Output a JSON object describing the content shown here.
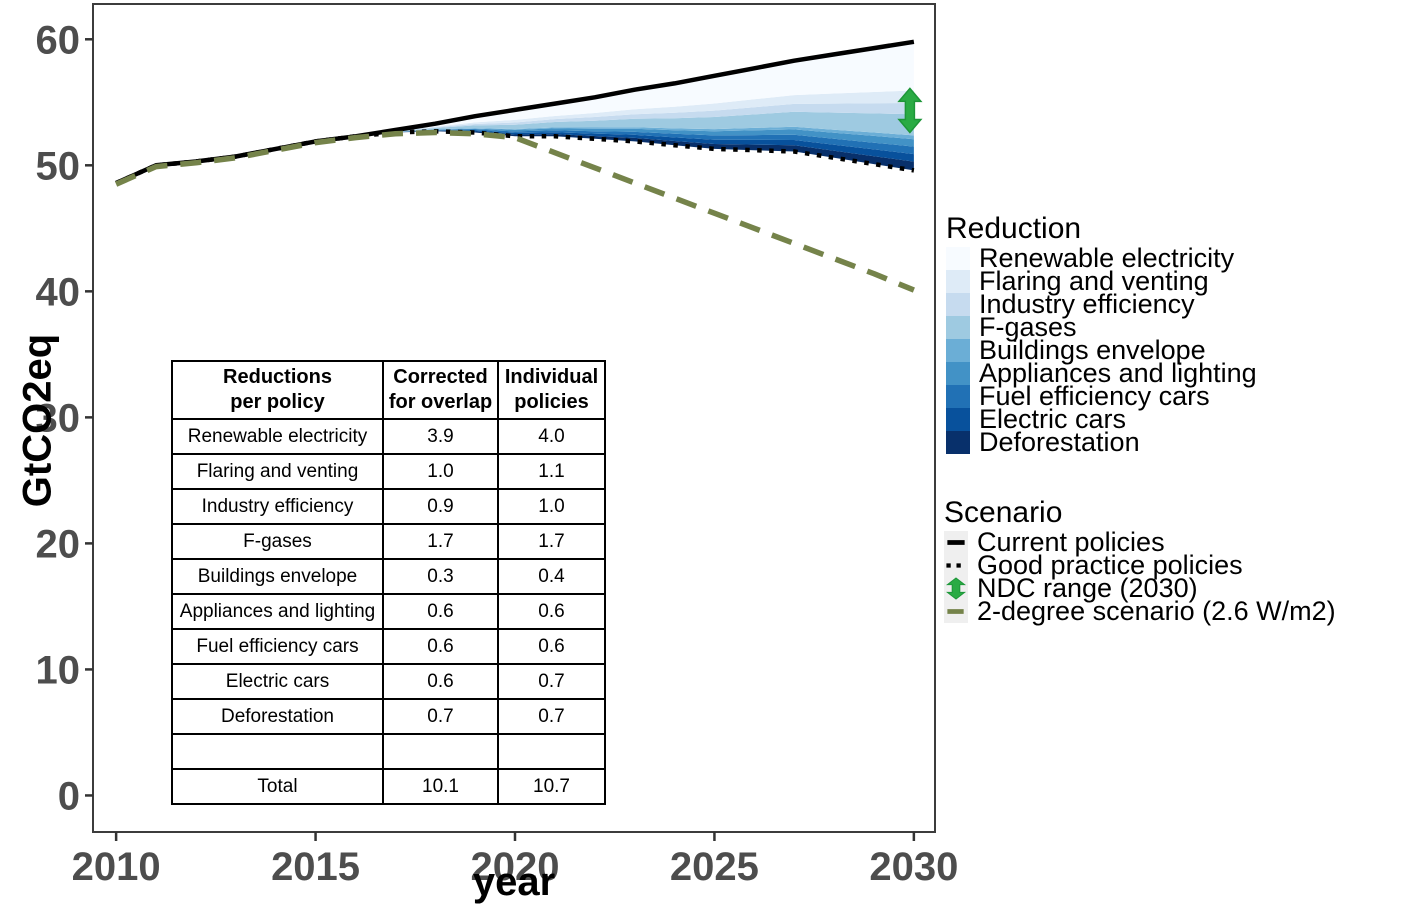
{
  "figure": {
    "background": "#ffffff"
  },
  "chart_data": {
    "type": "area",
    "title": "",
    "xlabel": "year",
    "ylabel": "GtCO2eq",
    "xlim": [
      2009.42,
      2030.53
    ],
    "ylim": [
      -2.9,
      62.8
    ],
    "xticks": [
      2010,
      2015,
      2020,
      2025,
      2030
    ],
    "yticks": [
      0,
      10,
      20,
      30,
      40,
      50,
      60
    ],
    "grid": "off",
    "legend_position": "right",
    "panel_border_color": "#3c3c3c",
    "tick_label_color": "#4d4d4d",
    "years": [
      2010,
      2011,
      2012,
      2013,
      2014,
      2015,
      2016,
      2017,
      2018,
      2019,
      2020,
      2021,
      2022,
      2023,
      2024,
      2025,
      2026,
      2027,
      2028,
      2029,
      2030
    ],
    "series": [
      {
        "name": "Current policies",
        "style": "solid",
        "color": "#000000",
        "values": [
          48.6,
          50.0,
          50.3,
          50.7,
          51.3,
          51.9,
          52.3,
          52.8,
          53.3,
          53.9,
          54.4,
          54.9,
          55.4,
          56.0,
          56.5,
          57.1,
          57.7,
          58.3,
          58.8,
          59.3,
          59.8
        ]
      },
      {
        "name": "Good practice policies",
        "style": "dotted",
        "color": "#000000",
        "values": [
          48.6,
          50.0,
          50.3,
          50.7,
          51.3,
          51.9,
          52.3,
          52.6,
          52.7,
          52.6,
          52.3,
          52.3,
          52.1,
          51.9,
          51.6,
          51.3,
          51.2,
          51.1,
          50.6,
          50.1,
          49.6
        ]
      },
      {
        "name": "2-degree scenario (2.6 W/m2)",
        "style": "dashed",
        "color": "#75834a",
        "values": [
          48.5,
          49.9,
          50.2,
          50.6,
          51.2,
          51.8,
          52.2,
          52.5,
          52.6,
          52.5,
          52.2,
          51.0,
          49.8,
          48.6,
          47.4,
          46.2,
          45.0,
          43.8,
          42.6,
          41.4,
          40.1
        ]
      }
    ],
    "reduction_bands": {
      "stacked_between": [
        "Good practice policies",
        "Current policies"
      ],
      "order_top_to_bottom": [
        "Renewable electricity",
        "Flaring and venting",
        "Industry efficiency",
        "F-gases",
        "Buildings envelope",
        "Appliances and lighting",
        "Fuel efficiency cars",
        "Electric cars",
        "Deforestation"
      ],
      "colors_top_to_bottom": [
        "#f7fbff",
        "#deebf7",
        "#c6dbef",
        "#9ecae1",
        "#6baed6",
        "#4292c6",
        "#2171b5",
        "#08519c",
        "#08306b"
      ],
      "widths_2030_GtCO2eq": [
        3.9,
        1.0,
        0.9,
        1.7,
        0.3,
        0.6,
        0.6,
        0.6,
        0.7
      ]
    },
    "ndc_range": {
      "label": "NDC range (2030)",
      "year": 2029.9,
      "low": 52.6,
      "high": 56.1,
      "fill": "#2aab44",
      "stroke": "#1d9638"
    }
  },
  "table": {
    "headers": [
      [
        "Reductions",
        "per policy"
      ],
      [
        "Corrected",
        "for overlap"
      ],
      [
        "Individual",
        "policies"
      ]
    ],
    "rows": [
      [
        "Renewable electricity",
        "3.9",
        "4.0"
      ],
      [
        "Flaring and venting",
        "1.0",
        "1.1"
      ],
      [
        "Industry efficiency",
        "0.9",
        "1.0"
      ],
      [
        "F-gases",
        "1.7",
        "1.7"
      ],
      [
        "Buildings envelope",
        "0.3",
        "0.4"
      ],
      [
        "Appliances and lighting",
        "0.6",
        "0.6"
      ],
      [
        "Fuel efficiency cars",
        "0.6",
        "0.6"
      ],
      [
        "Electric cars",
        "0.6",
        "0.7"
      ],
      [
        "Deforestation",
        "0.7",
        "0.7"
      ],
      [
        "",
        "",
        ""
      ],
      [
        "Total",
        "10.1",
        "10.7"
      ]
    ]
  },
  "legend_reduction": {
    "title": "Reduction",
    "items": [
      {
        "label": "Renewable electricity",
        "color": "#f7fbff"
      },
      {
        "label": "Flaring and venting",
        "color": "#deebf7"
      },
      {
        "label": "Industry efficiency",
        "color": "#c6dbef"
      },
      {
        "label": "F-gases",
        "color": "#9ecae1"
      },
      {
        "label": "Buildings envelope",
        "color": "#6baed6"
      },
      {
        "label": "Appliances and lighting",
        "color": "#4292c6"
      },
      {
        "label": "Fuel efficiency cars",
        "color": "#2171b5"
      },
      {
        "label": "Electric cars",
        "color": "#08519c"
      },
      {
        "label": "Deforestation",
        "color": "#08306b"
      }
    ]
  },
  "legend_scenario": {
    "title": "Scenario",
    "items": [
      {
        "label": "Current policies",
        "key": "solid-line",
        "color": "#000000"
      },
      {
        "label": "Good practice policies",
        "key": "dotted-line",
        "color": "#000000"
      },
      {
        "label": "NDC range (2030)",
        "key": "double-arrow",
        "color": "#2aab44"
      },
      {
        "label": "2-degree scenario (2.6 W/m2)",
        "key": "dashed-line",
        "color": "#75834a"
      }
    ]
  }
}
